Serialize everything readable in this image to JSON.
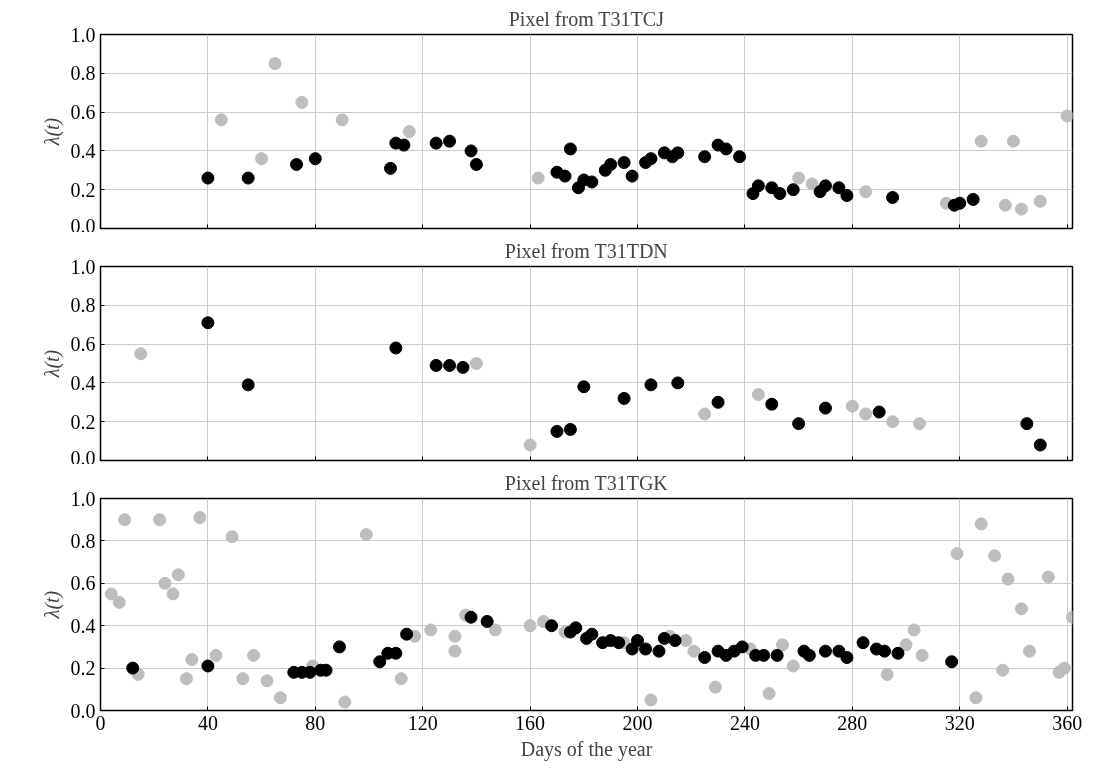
{
  "chart_data": [
    {
      "type": "scatter",
      "title": "Pixel from T31TCJ",
      "ylabel": "λ(t)",
      "xlim": [
        0,
        362
      ],
      "xticks": [
        0,
        40,
        80,
        120,
        160,
        200,
        240,
        280,
        320,
        360
      ],
      "ylim": [
        0,
        1
      ],
      "yticks": [
        {
          "value": 0,
          "label": "0.0"
        },
        {
          "value": 0.2,
          "label": "0.2"
        },
        {
          "value": 0.4,
          "label": "0.4"
        },
        {
          "value": 0.6,
          "label": "0.6"
        },
        {
          "value": 0.8,
          "label": "0.8"
        },
        {
          "value": 1,
          "label": "1.0"
        }
      ],
      "grid": true,
      "marker": "circle",
      "tick_labels": "y",
      "series": [
        {
          "color": "#bdbdbd",
          "x": [
            45,
            60,
            65,
            75,
            90,
            115,
            163,
            260,
            265,
            285,
            315,
            328,
            337,
            340,
            343,
            350,
            360
          ],
          "values": [
            0.56,
            0.36,
            0.85,
            0.65,
            0.56,
            0.5,
            0.26,
            0.26,
            0.23,
            0.19,
            0.13,
            0.45,
            0.12,
            0.45,
            0.1,
            0.14,
            0.58
          ]
        },
        {
          "color": "#000000",
          "x": [
            40,
            55,
            73,
            80,
            108,
            110,
            113,
            125,
            130,
            138,
            140,
            170,
            173,
            175,
            178,
            180,
            183,
            188,
            190,
            195,
            198,
            203,
            205,
            210,
            213,
            215,
            225,
            230,
            233,
            238,
            243,
            245,
            250,
            253,
            258,
            268,
            270,
            275,
            278,
            295,
            318,
            320,
            325
          ],
          "values": [
            0.26,
            0.26,
            0.33,
            0.36,
            0.31,
            0.44,
            0.43,
            0.44,
            0.45,
            0.4,
            0.33,
            0.29,
            0.27,
            0.41,
            0.21,
            0.25,
            0.24,
            0.3,
            0.33,
            0.34,
            0.27,
            0.34,
            0.36,
            0.39,
            0.37,
            0.39,
            0.37,
            0.43,
            0.41,
            0.37,
            0.18,
            0.22,
            0.21,
            0.18,
            0.2,
            0.19,
            0.22,
            0.21,
            0.17,
            0.16,
            0.12,
            0.13,
            0.15
          ]
        }
      ]
    },
    {
      "type": "scatter",
      "title": "Pixel from T31TDN",
      "ylabel": "λ(t)",
      "xlim": [
        0,
        362
      ],
      "xticks": [
        0,
        40,
        80,
        120,
        160,
        200,
        240,
        280,
        320,
        360
      ],
      "ylim": [
        0,
        1
      ],
      "yticks": [
        {
          "value": 0,
          "label": "0.0"
        },
        {
          "value": 0.2,
          "label": "0.2"
        },
        {
          "value": 0.4,
          "label": "0.4"
        },
        {
          "value": 0.6,
          "label": "0.6"
        },
        {
          "value": 0.8,
          "label": "0.8"
        },
        {
          "value": 1,
          "label": "1.0"
        }
      ],
      "grid": true,
      "marker": "circle",
      "tick_labels": "y",
      "series": [
        {
          "color": "#bdbdbd",
          "x": [
            15,
            140,
            160,
            225,
            245,
            280,
            285,
            295,
            305
          ],
          "values": [
            0.55,
            0.5,
            0.08,
            0.24,
            0.34,
            0.28,
            0.24,
            0.2,
            0.19
          ]
        },
        {
          "color": "#000000",
          "x": [
            40,
            55,
            110,
            125,
            130,
            135,
            170,
            175,
            180,
            195,
            205,
            215,
            230,
            250,
            260,
            270,
            290,
            345,
            350
          ],
          "values": [
            0.71,
            0.39,
            0.58,
            0.49,
            0.49,
            0.48,
            0.15,
            0.16,
            0.38,
            0.32,
            0.39,
            0.4,
            0.3,
            0.29,
            0.19,
            0.27,
            0.25,
            0.19,
            0.08
          ]
        }
      ]
    },
    {
      "type": "scatter",
      "title": "Pixel from T31TGK",
      "xlabel": "Days of the year",
      "ylabel": "λ(t)",
      "xlim": [
        0,
        362
      ],
      "xticks": [
        0,
        40,
        80,
        120,
        160,
        200,
        240,
        280,
        320,
        360
      ],
      "ylim": [
        0,
        1
      ],
      "yticks": [
        {
          "value": 0,
          "label": "0.0"
        },
        {
          "value": 0.2,
          "label": "0.2"
        },
        {
          "value": 0.4,
          "label": "0.4"
        },
        {
          "value": 0.6,
          "label": "0.6"
        },
        {
          "value": 0.8,
          "label": "0.8"
        },
        {
          "value": 1,
          "label": "1.0"
        }
      ],
      "grid": true,
      "marker": "circle",
      "series": [
        {
          "color": "#bdbdbd",
          "x": [
            4,
            7,
            9,
            14,
            22,
            24,
            27,
            29,
            32,
            34,
            37,
            43,
            49,
            53,
            57,
            62,
            67,
            79,
            91,
            99,
            112,
            117,
            123,
            132,
            132,
            136,
            147,
            160,
            165,
            173,
            195,
            205,
            212,
            218,
            221,
            229,
            242,
            249,
            254,
            258,
            293,
            300,
            303,
            306,
            319,
            326,
            328,
            333,
            336,
            338,
            343,
            346,
            353,
            357,
            359,
            362
          ],
          "values": [
            0.55,
            0.51,
            0.9,
            0.17,
            0.9,
            0.6,
            0.55,
            0.64,
            0.15,
            0.24,
            0.91,
            0.26,
            0.82,
            0.15,
            0.26,
            0.14,
            0.06,
            0.21,
            0.04,
            0.83,
            0.15,
            0.35,
            0.38,
            0.28,
            0.35,
            0.45,
            0.38,
            0.4,
            0.42,
            0.37,
            0.32,
            0.05,
            0.35,
            0.33,
            0.28,
            0.11,
            0.29,
            0.08,
            0.31,
            0.21,
            0.17,
            0.31,
            0.38,
            0.26,
            0.74,
            0.06,
            0.88,
            0.73,
            0.19,
            0.62,
            0.48,
            0.28,
            0.63,
            0.18,
            0.2,
            0.44
          ]
        },
        {
          "color": "#000000",
          "x": [
            12,
            40,
            72,
            75,
            78,
            82,
            84,
            89,
            104,
            107,
            110,
            114,
            138,
            144,
            168,
            175,
            177,
            181,
            183,
            187,
            190,
            193,
            198,
            200,
            203,
            208,
            210,
            214,
            225,
            230,
            233,
            236,
            239,
            244,
            247,
            252,
            262,
            264,
            270,
            275,
            278,
            284,
            289,
            292,
            297,
            317
          ],
          "values": [
            0.2,
            0.21,
            0.18,
            0.18,
            0.18,
            0.19,
            0.19,
            0.3,
            0.23,
            0.27,
            0.27,
            0.36,
            0.44,
            0.42,
            0.4,
            0.37,
            0.39,
            0.34,
            0.36,
            0.32,
            0.33,
            0.32,
            0.29,
            0.33,
            0.29,
            0.28,
            0.34,
            0.33,
            0.25,
            0.28,
            0.26,
            0.28,
            0.3,
            0.26,
            0.26,
            0.26,
            0.28,
            0.26,
            0.28,
            0.28,
            0.25,
            0.32,
            0.29,
            0.28,
            0.27,
            0.23
          ]
        }
      ]
    }
  ]
}
